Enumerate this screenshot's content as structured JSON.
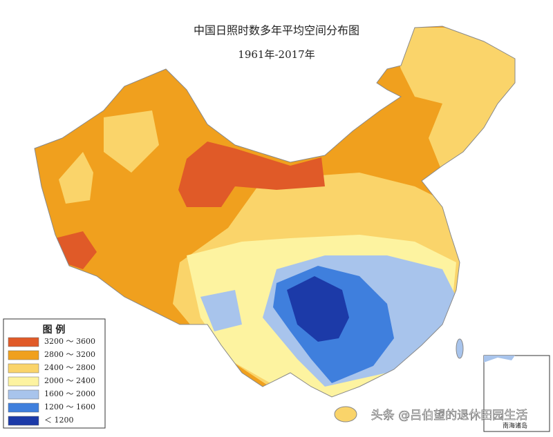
{
  "title": "中国日照时数多年平均空间分布图",
  "subtitle": "1961年-2017年",
  "legend": {
    "title": "图 例",
    "items": [
      {
        "label": "3200 ～ 3600",
        "color": "#e05a28"
      },
      {
        "label": "2800 ～ 3200",
        "color": "#f0a01e"
      },
      {
        "label": "2400 ～ 2800",
        "color": "#fad46a"
      },
      {
        "label": "2000 ～ 2400",
        "color": "#fdf3a0"
      },
      {
        "label": "1600 ～ 2000",
        "color": "#a8c4ec"
      },
      {
        "label": "1200 ～ 1600",
        "color": "#3f7fdd"
      },
      {
        "label": "＜ 1200",
        "color": "#1c3aa8"
      }
    ]
  },
  "inset_label": "南海诸岛",
  "watermark": "头条 @吕伯望的退休田园生活"
}
